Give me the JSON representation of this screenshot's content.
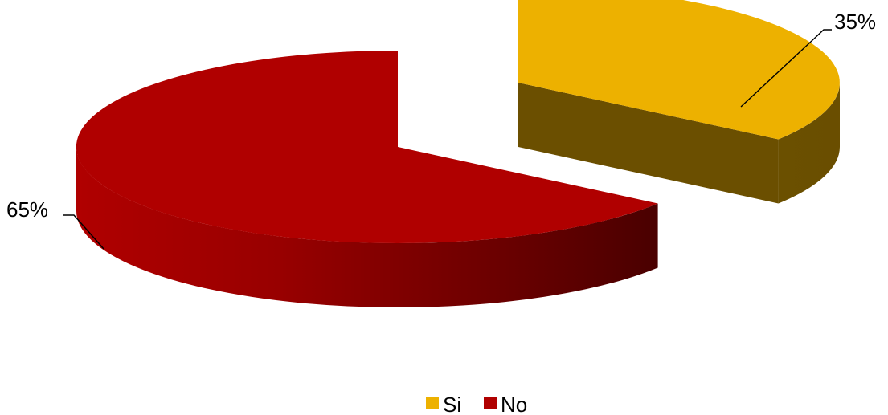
{
  "chart_data": {
    "type": "pie",
    "style": "3d-exploded",
    "categories": [
      "Si",
      "No"
    ],
    "values": [
      35,
      65
    ],
    "unit": "%",
    "labels": [
      "35%",
      "65%"
    ],
    "colors": [
      "#EDB100",
      "#B00000"
    ],
    "legend": {
      "placement": "bottom",
      "entries": [
        "Si",
        "No"
      ]
    }
  }
}
